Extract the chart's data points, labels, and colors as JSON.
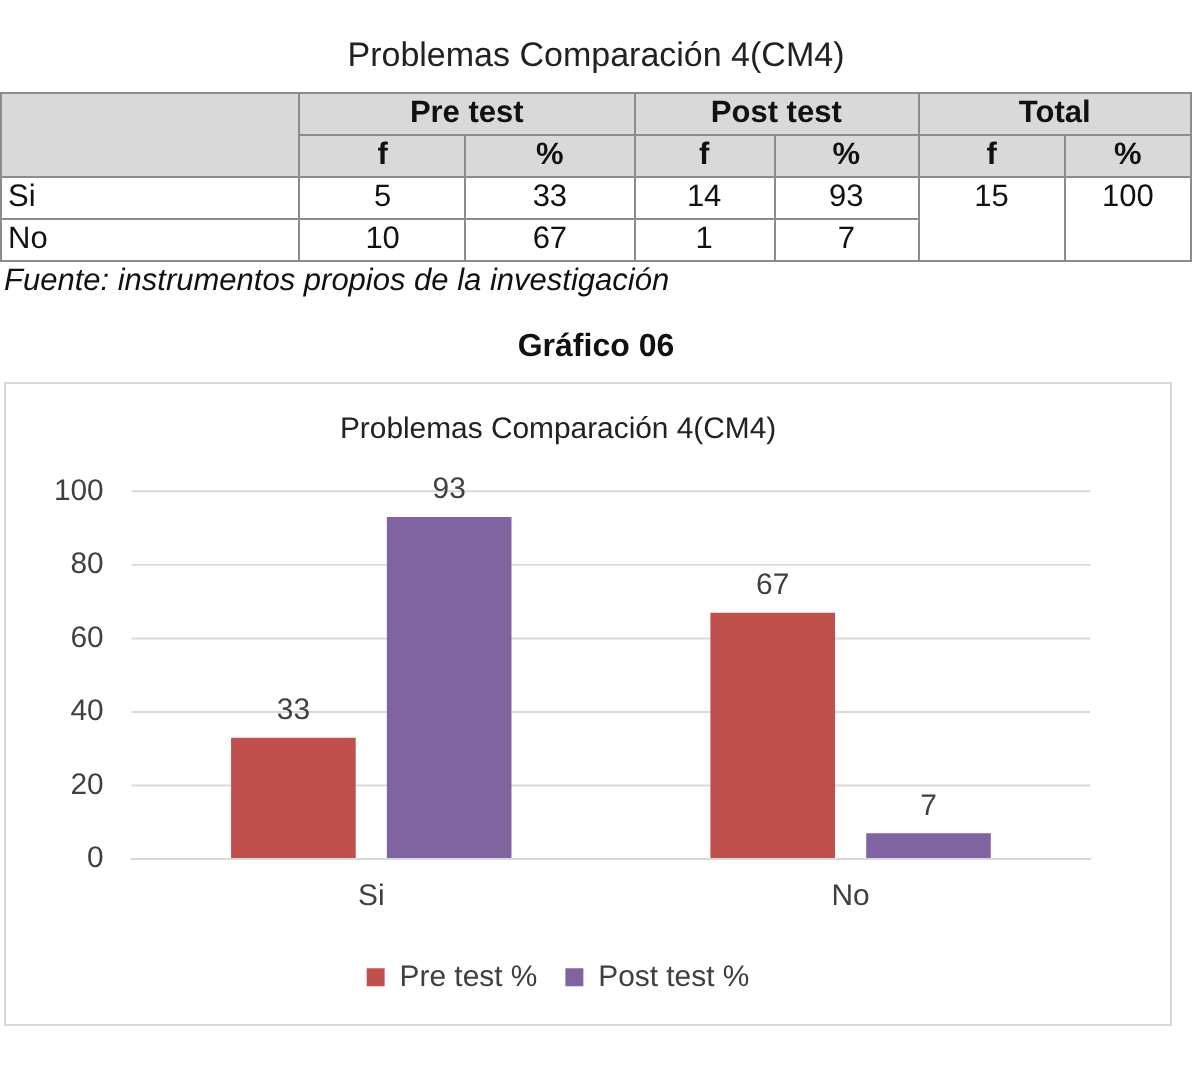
{
  "chart_data": [
    {
      "type": "other",
      "title": "Problemas Comparación 4(CM4)",
      "cell_labels": [
        [
          null,
          "Pre test",
          null,
          "Post test",
          null,
          "Total",
          null
        ],
        [
          null,
          "f",
          "%",
          "f",
          "%",
          "f",
          "%"
        ],
        [
          "Si",
          "5",
          "33",
          "14",
          "93",
          "15",
          "100"
        ],
        [
          "No",
          "10",
          "67",
          "1",
          "7",
          null,
          null
        ]
      ],
      "annotations": [
        "Fuente: instrumentos propios de la investigación"
      ]
    },
    {
      "type": "bar",
      "title": "Gráfico 06",
      "subtitle": "Problemas Comparación 4(CM4)",
      "categories": [
        "Si",
        "No"
      ],
      "series": [
        {
          "name": "Pre test %",
          "color": "#c0504d",
          "values": [
            33,
            67
          ]
        },
        {
          "name": "Post test %",
          "color": "#8064a2",
          "values": [
            93,
            7
          ]
        }
      ],
      "ylim": [
        0,
        100
      ],
      "yticks": [
        0,
        20,
        40,
        60,
        80,
        100
      ],
      "grid": "y",
      "legend": "bottom",
      "data_labels": true
    }
  ]
}
